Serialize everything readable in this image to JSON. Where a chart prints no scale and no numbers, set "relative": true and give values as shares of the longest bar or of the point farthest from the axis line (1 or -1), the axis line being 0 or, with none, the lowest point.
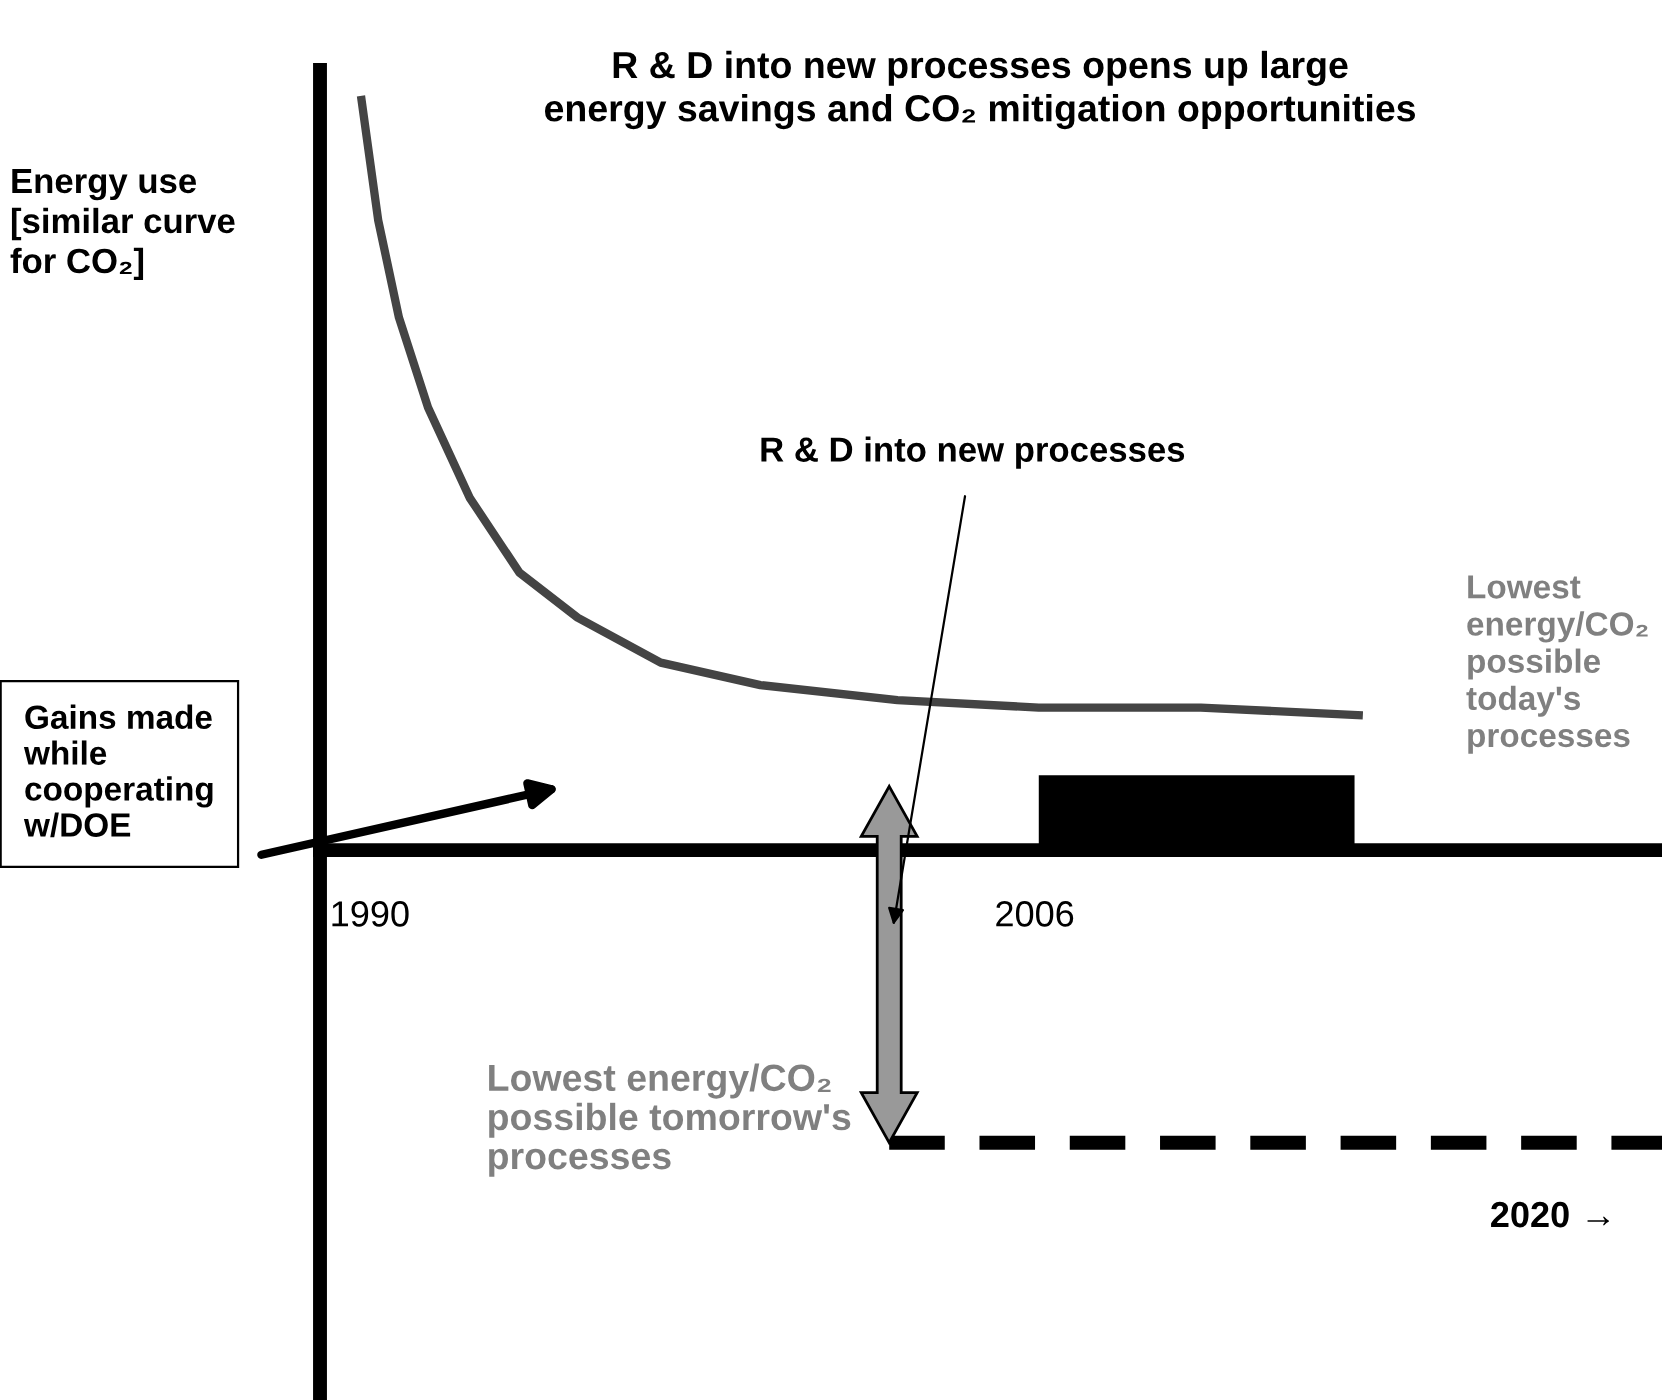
{
  "chart_data": {
    "type": "line",
    "relative": true,
    "title": "R & D into new processes opens up large energy savings and CO₂ mitigation opportunities",
    "ylabel": "Energy use [similar curve for CO₂]",
    "xlim": [
      1988.8,
      2021.1
    ],
    "xticks": [
      1990,
      2006
    ],
    "series": [
      {
        "color": "#444444",
        "x": [
          1989.8,
          1990.2,
          1990.7,
          1991.4,
          1992.4,
          1993.6,
          1995.0,
          1997.0,
          1999.4,
          2002.7,
          2006.1,
          2010.0,
          2013.8
        ],
        "values": [
          1.0,
          0.84,
          0.71,
          0.59,
          0.47,
          0.37,
          0.31,
          0.25,
          0.22,
          0.2,
          0.19,
          0.19,
          0.18
        ]
      },
      {
        "type": "area",
        "color": "#000000",
        "x": [
          2006.1,
          2013.7
        ],
        "values": [
          0.1,
          0.1
        ]
      }
    ],
    "ref_lines": [
      {
        "axis": "y",
        "value": -0.39,
        "label": "Lowest energy/CO₂ possible tomorrow's processes",
        "color": "#000000",
        "line_style": "dashed"
      }
    ],
    "annotations": [
      "R & D into new processes",
      "Gains made while cooperating w/DOE",
      "Lowest energy/CO₂ possible today's processes",
      {
        "text": "2020 →",
        "x": 2020,
        "y": -0.39
      }
    ],
    "grid": false,
    "legend": false,
    "marker": "none"
  }
}
